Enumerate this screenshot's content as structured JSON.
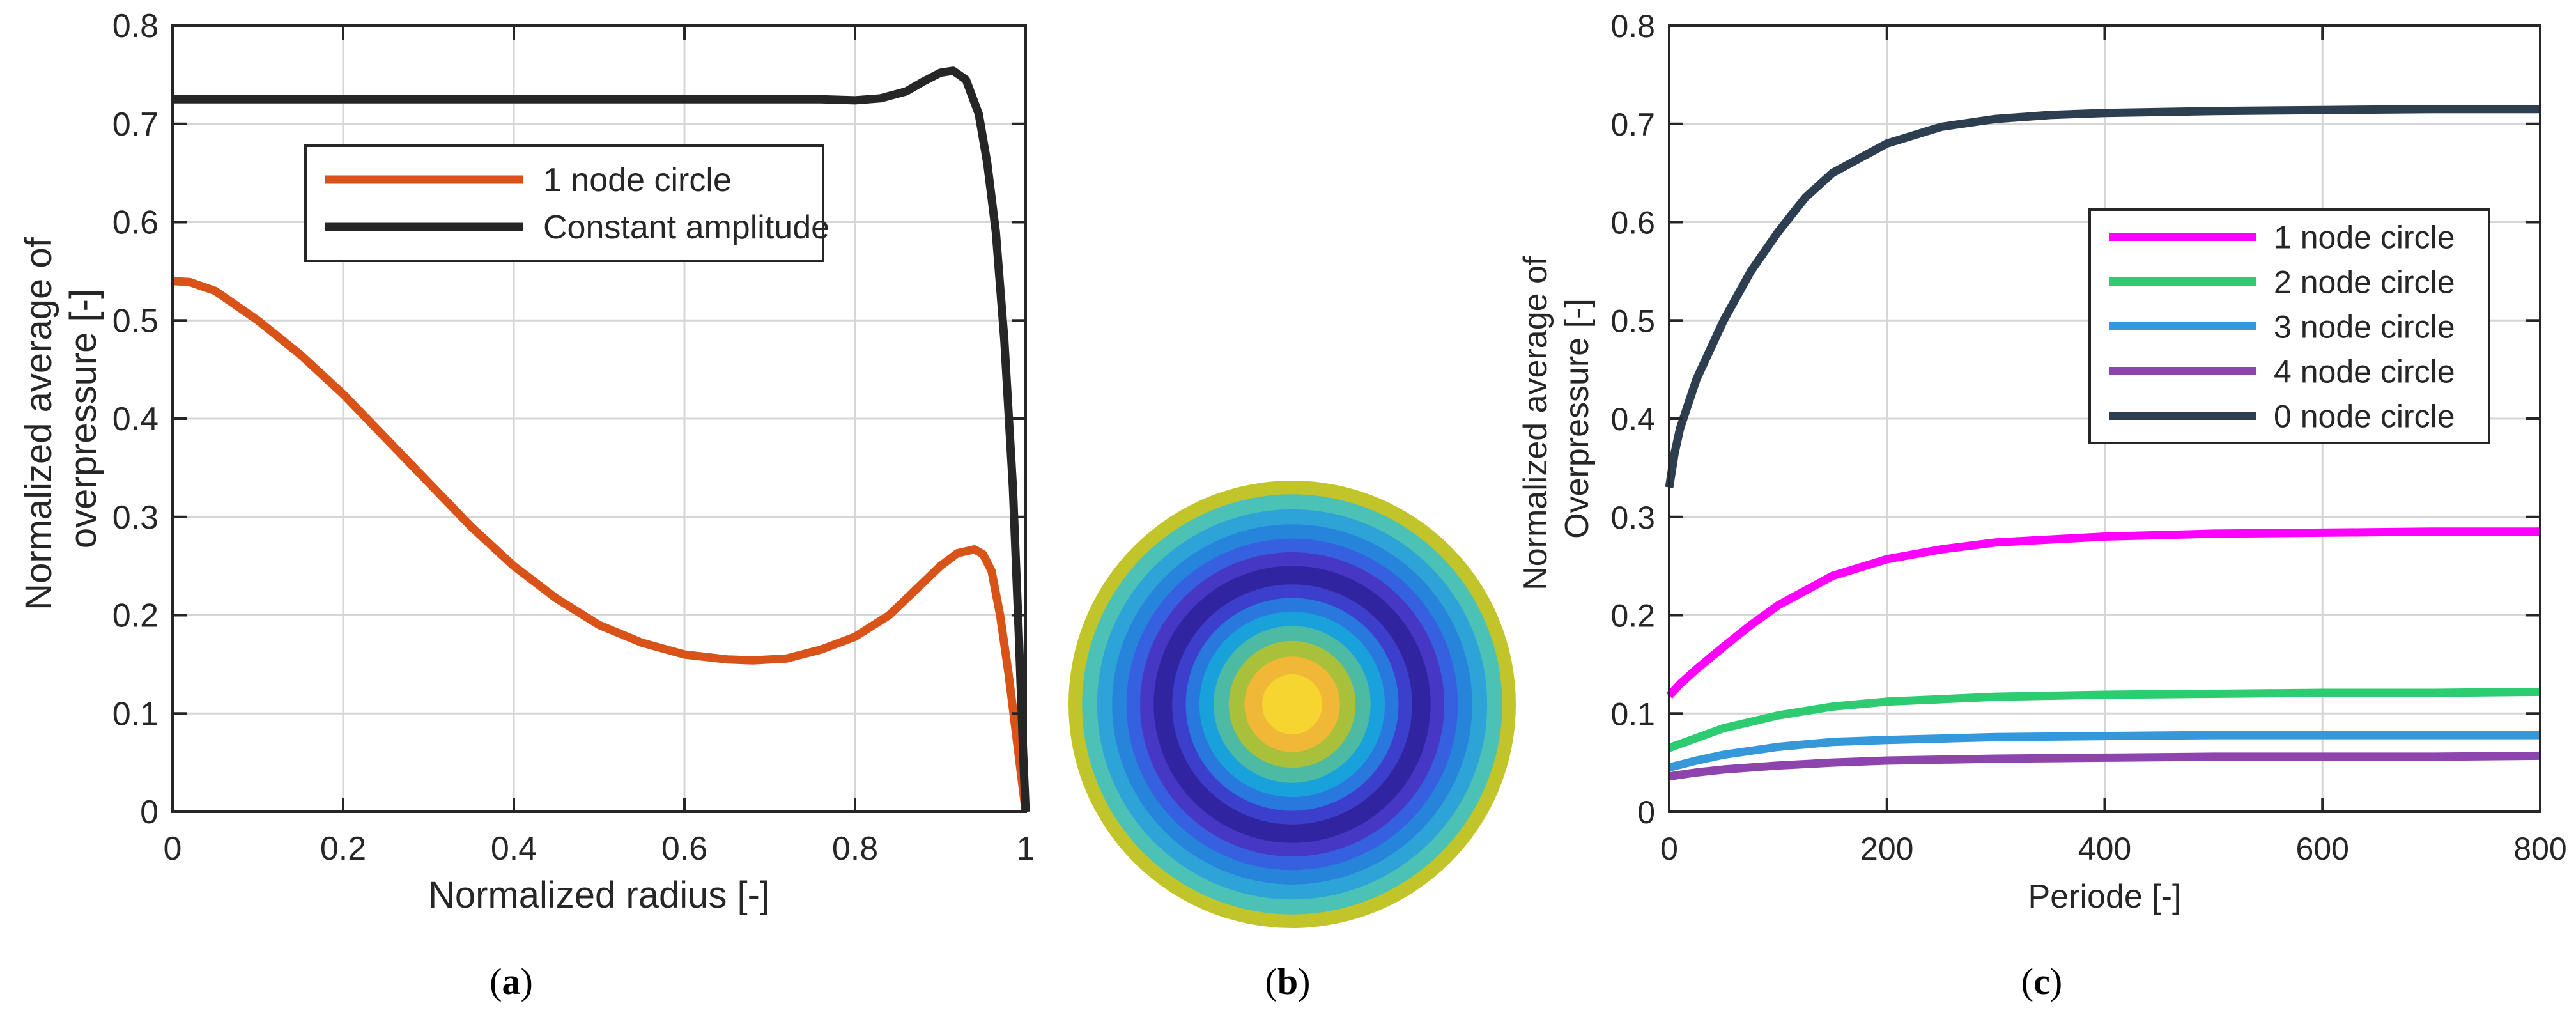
{
  "figure_captions": [
    "a",
    "b",
    "c"
  ],
  "chart_data": [
    {
      "id": "a",
      "type": "line",
      "title": "",
      "xlabel": "Normalized radius [-]",
      "ylabel_lines": [
        "Normalized average of",
        "overpressure [-]"
      ],
      "xlim": [
        0,
        1
      ],
      "ylim": [
        0,
        0.8
      ],
      "xticks": [
        0,
        0.2,
        0.4,
        0.6,
        0.8,
        1
      ],
      "xtick_labels": [
        "0",
        "0.2",
        "0.4",
        "0.6",
        "0.8",
        "1"
      ],
      "yticks": [
        0,
        0.1,
        0.2,
        0.3,
        0.4,
        0.5,
        0.6,
        0.7,
        0.8
      ],
      "ytick_labels": [
        "0",
        "0.1",
        "0.2",
        "0.3",
        "0.4",
        "0.5",
        "0.6",
        "0.7",
        "0.8"
      ],
      "grid": true,
      "legend_position": "top-center",
      "series": [
        {
          "name": "1 node circle",
          "color": "#D95319",
          "x": [
            0,
            0.02,
            0.05,
            0.1,
            0.15,
            0.2,
            0.25,
            0.3,
            0.35,
            0.4,
            0.45,
            0.5,
            0.55,
            0.6,
            0.65,
            0.68,
            0.72,
            0.76,
            0.8,
            0.84,
            0.87,
            0.9,
            0.92,
            0.94,
            0.95,
            0.96,
            0.97,
            0.98,
            0.99,
            1.0
          ],
          "y": [
            0.54,
            0.539,
            0.53,
            0.5,
            0.465,
            0.425,
            0.38,
            0.335,
            0.29,
            0.25,
            0.217,
            0.19,
            0.172,
            0.16,
            0.155,
            0.154,
            0.156,
            0.165,
            0.178,
            0.2,
            0.225,
            0.25,
            0.263,
            0.267,
            0.262,
            0.245,
            0.2,
            0.14,
            0.07,
            0.0
          ]
        },
        {
          "name": "Constant amplitude",
          "color": "#262626",
          "x": [
            0,
            0.2,
            0.4,
            0.6,
            0.76,
            0.8,
            0.83,
            0.86,
            0.88,
            0.9,
            0.915,
            0.93,
            0.945,
            0.955,
            0.965,
            0.975,
            0.985,
            0.992,
            0.997,
            1.0
          ],
          "y": [
            0.725,
            0.725,
            0.725,
            0.725,
            0.725,
            0.724,
            0.726,
            0.733,
            0.743,
            0.752,
            0.754,
            0.745,
            0.71,
            0.66,
            0.59,
            0.48,
            0.33,
            0.18,
            0.06,
            0.0
          ]
        }
      ]
    },
    {
      "id": "c",
      "type": "line",
      "title": "",
      "xlabel": "Periode [-]",
      "ylabel_lines": [
        "Normalized average of",
        "Overpressure [-]"
      ],
      "xlim": [
        0,
        800
      ],
      "ylim": [
        0,
        0.8
      ],
      "xticks": [
        0,
        200,
        400,
        600,
        800
      ],
      "xtick_labels": [
        "0",
        "200",
        "400",
        "600",
        "800"
      ],
      "yticks": [
        0,
        0.1,
        0.2,
        0.3,
        0.4,
        0.5,
        0.6,
        0.7,
        0.8
      ],
      "ytick_labels": [
        "0",
        "0.1",
        "0.2",
        "0.3",
        "0.4",
        "0.5",
        "0.6",
        "0.7",
        "0.8"
      ],
      "grid": true,
      "legend_position": "center-right",
      "series": [
        {
          "name": "1 node circle",
          "color": "#FF00FF",
          "x": [
            0,
            10,
            25,
            50,
            75,
            100,
            150,
            200,
            250,
            300,
            400,
            500,
            600,
            700,
            800
          ],
          "y": [
            0.118,
            0.13,
            0.145,
            0.168,
            0.19,
            0.21,
            0.24,
            0.257,
            0.267,
            0.274,
            0.28,
            0.283,
            0.284,
            0.285,
            0.285
          ]
        },
        {
          "name": "2 node circle",
          "color": "#2ECC71",
          "x": [
            0,
            25,
            50,
            100,
            150,
            200,
            300,
            400,
            500,
            600,
            700,
            800
          ],
          "y": [
            0.065,
            0.075,
            0.085,
            0.098,
            0.107,
            0.112,
            0.117,
            0.119,
            0.12,
            0.121,
            0.121,
            0.122
          ]
        },
        {
          "name": "3 node circle",
          "color": "#3498DB",
          "x": [
            0,
            25,
            50,
            100,
            150,
            200,
            300,
            400,
            500,
            600,
            700,
            800
          ],
          "y": [
            0.045,
            0.052,
            0.058,
            0.066,
            0.071,
            0.073,
            0.076,
            0.077,
            0.078,
            0.078,
            0.078,
            0.078
          ]
        },
        {
          "name": "4 node circle",
          "color": "#8E44AD",
          "x": [
            0,
            25,
            50,
            100,
            150,
            200,
            300,
            400,
            500,
            600,
            700,
            800
          ],
          "y": [
            0.036,
            0.04,
            0.043,
            0.047,
            0.05,
            0.052,
            0.054,
            0.055,
            0.056,
            0.056,
            0.056,
            0.057
          ]
        },
        {
          "name": "0 node circle",
          "color": "#2C3E50",
          "x": [
            0,
            5,
            10,
            25,
            50,
            75,
            100,
            125,
            150,
            200,
            250,
            300,
            350,
            400,
            500,
            600,
            700,
            800
          ],
          "y": [
            0.33,
            0.365,
            0.39,
            0.44,
            0.5,
            0.55,
            0.59,
            0.625,
            0.65,
            0.68,
            0.697,
            0.705,
            0.709,
            0.711,
            0.713,
            0.714,
            0.715,
            0.715
          ]
        }
      ]
    }
  ],
  "contour_disk": {
    "panel": "b",
    "rings_outer_to_inner": [
      "#C2C52A",
      "#4CC1B5",
      "#2DA3D8",
      "#2684DB",
      "#3560E0",
      "#4637C4",
      "#3124A0",
      "#3B3FCC",
      "#2878DD",
      "#19A1DB",
      "#4DBBA3",
      "#A8C03A",
      "#F0B836",
      "#F7D530"
    ]
  }
}
